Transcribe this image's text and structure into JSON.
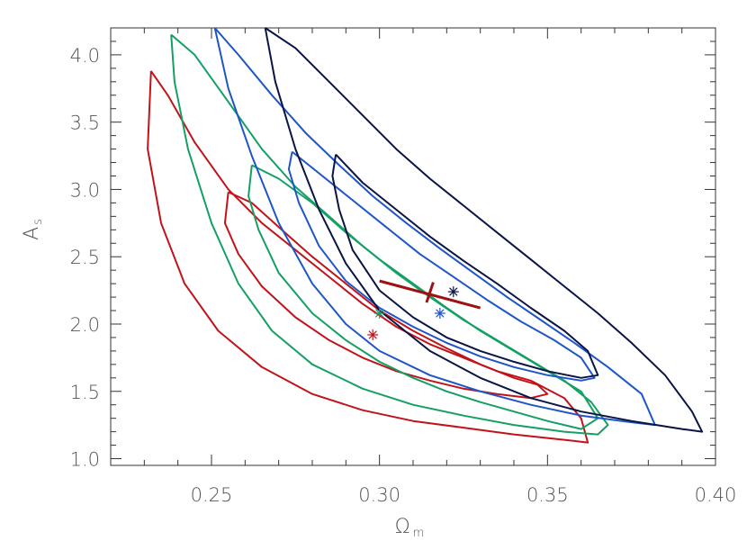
{
  "chart_data": {
    "type": "contour",
    "title": "",
    "xlabel": "Ω",
    "xlabel_sub": "m",
    "ylabel": "A",
    "ylabel_sub": "s",
    "xlim": [
      0.22,
      0.4
    ],
    "ylim": [
      0.95,
      4.2
    ],
    "xticks": [
      0.25,
      0.3,
      0.35,
      0.4
    ],
    "xtick_labels": [
      "0.25",
      "0.30",
      "0.35",
      "0.40"
    ],
    "xminor_step": 0.01,
    "yticks": [
      1.0,
      1.5,
      2.0,
      2.5,
      3.0,
      3.5,
      4.0
    ],
    "ytick_labels": [
      "1.0",
      "1.5",
      "2.0",
      "2.5",
      "3.0",
      "3.5",
      "4.0"
    ],
    "yminor_step": 0.1,
    "grid": false,
    "legend": "none",
    "series": [
      {
        "color": "#c0141a",
        "best_fit": [
          0.298,
          1.92
        ],
        "contours": [
          [
            [
              0.255,
              2.98
            ],
            [
              0.262,
              2.9
            ],
            [
              0.27,
              2.72
            ],
            [
              0.28,
              2.5
            ],
            [
              0.29,
              2.3
            ],
            [
              0.3,
              2.1
            ],
            [
              0.31,
              1.95
            ],
            [
              0.32,
              1.82
            ],
            [
              0.33,
              1.7
            ],
            [
              0.34,
              1.6
            ],
            [
              0.347,
              1.55
            ],
            [
              0.35,
              1.48
            ],
            [
              0.345,
              1.45
            ],
            [
              0.335,
              1.48
            ],
            [
              0.325,
              1.52
            ],
            [
              0.315,
              1.58
            ],
            [
              0.305,
              1.65
            ],
            [
              0.295,
              1.75
            ],
            [
              0.285,
              1.88
            ],
            [
              0.275,
              2.05
            ],
            [
              0.265,
              2.28
            ],
            [
              0.258,
              2.52
            ],
            [
              0.254,
              2.75
            ],
            [
              0.255,
              2.98
            ]
          ],
          [
            [
              0.232,
              3.88
            ],
            [
              0.237,
              3.7
            ],
            [
              0.245,
              3.35
            ],
            [
              0.255,
              3.0
            ],
            [
              0.265,
              2.75
            ],
            [
              0.275,
              2.55
            ],
            [
              0.285,
              2.35
            ],
            [
              0.295,
              2.15
            ],
            [
              0.305,
              1.98
            ],
            [
              0.315,
              1.85
            ],
            [
              0.325,
              1.75
            ],
            [
              0.335,
              1.65
            ],
            [
              0.345,
              1.58
            ],
            [
              0.355,
              1.45
            ],
            [
              0.36,
              1.3
            ],
            [
              0.362,
              1.12
            ],
            [
              0.355,
              1.14
            ],
            [
              0.34,
              1.18
            ],
            [
              0.325,
              1.23
            ],
            [
              0.31,
              1.28
            ],
            [
              0.295,
              1.36
            ],
            [
              0.28,
              1.48
            ],
            [
              0.265,
              1.68
            ],
            [
              0.252,
              1.95
            ],
            [
              0.242,
              2.3
            ],
            [
              0.235,
              2.75
            ],
            [
              0.231,
              3.3
            ],
            [
              0.232,
              3.88
            ]
          ]
        ]
      },
      {
        "color": "#14a064",
        "best_fit": [
          0.3,
          2.08
        ],
        "contours": [
          [
            [
              0.262,
              3.18
            ],
            [
              0.27,
              3.08
            ],
            [
              0.28,
              2.9
            ],
            [
              0.29,
              2.68
            ],
            [
              0.3,
              2.48
            ],
            [
              0.31,
              2.3
            ],
            [
              0.32,
              2.12
            ],
            [
              0.33,
              1.95
            ],
            [
              0.34,
              1.8
            ],
            [
              0.35,
              1.65
            ],
            [
              0.36,
              1.5
            ],
            [
              0.365,
              1.3
            ],
            [
              0.36,
              1.22
            ],
            [
              0.35,
              1.28
            ],
            [
              0.34,
              1.35
            ],
            [
              0.33,
              1.42
            ],
            [
              0.32,
              1.5
            ],
            [
              0.31,
              1.6
            ],
            [
              0.3,
              1.72
            ],
            [
              0.29,
              1.88
            ],
            [
              0.28,
              2.08
            ],
            [
              0.27,
              2.38
            ],
            [
              0.264,
              2.7
            ],
            [
              0.261,
              2.95
            ],
            [
              0.262,
              3.18
            ]
          ],
          [
            [
              0.238,
              4.15
            ],
            [
              0.245,
              4.0
            ],
            [
              0.255,
              3.65
            ],
            [
              0.265,
              3.3
            ],
            [
              0.275,
              3.02
            ],
            [
              0.285,
              2.8
            ],
            [
              0.295,
              2.58
            ],
            [
              0.305,
              2.38
            ],
            [
              0.315,
              2.2
            ],
            [
              0.325,
              2.03
            ],
            [
              0.335,
              1.88
            ],
            [
              0.345,
              1.73
            ],
            [
              0.355,
              1.58
            ],
            [
              0.363,
              1.42
            ],
            [
              0.368,
              1.25
            ],
            [
              0.365,
              1.18
            ],
            [
              0.355,
              1.2
            ],
            [
              0.34,
              1.25
            ],
            [
              0.325,
              1.32
            ],
            [
              0.31,
              1.4
            ],
            [
              0.295,
              1.52
            ],
            [
              0.28,
              1.7
            ],
            [
              0.268,
              1.95
            ],
            [
              0.258,
              2.3
            ],
            [
              0.25,
              2.75
            ],
            [
              0.243,
              3.3
            ],
            [
              0.239,
              3.8
            ],
            [
              0.238,
              4.15
            ]
          ]
        ]
      },
      {
        "color": "#1e55c8",
        "best_fit": [
          0.318,
          2.08
        ],
        "contours": [
          [
            [
              0.274,
              3.28
            ],
            [
              0.282,
              3.12
            ],
            [
              0.292,
              2.92
            ],
            [
              0.302,
              2.72
            ],
            [
              0.312,
              2.52
            ],
            [
              0.322,
              2.35
            ],
            [
              0.332,
              2.18
            ],
            [
              0.342,
              2.02
            ],
            [
              0.352,
              1.88
            ],
            [
              0.36,
              1.75
            ],
            [
              0.364,
              1.6
            ],
            [
              0.36,
              1.58
            ],
            [
              0.35,
              1.62
            ],
            [
              0.34,
              1.68
            ],
            [
              0.33,
              1.76
            ],
            [
              0.32,
              1.86
            ],
            [
              0.31,
              1.98
            ],
            [
              0.3,
              2.12
            ],
            [
              0.29,
              2.32
            ],
            [
              0.282,
              2.58
            ],
            [
              0.276,
              2.9
            ],
            [
              0.273,
              3.15
            ],
            [
              0.274,
              3.28
            ]
          ],
          [
            [
              0.251,
              4.2
            ],
            [
              0.258,
              4.0
            ],
            [
              0.268,
              3.7
            ],
            [
              0.278,
              3.42
            ],
            [
              0.288,
              3.18
            ],
            [
              0.298,
              2.95
            ],
            [
              0.308,
              2.75
            ],
            [
              0.318,
              2.56
            ],
            [
              0.328,
              2.38
            ],
            [
              0.338,
              2.2
            ],
            [
              0.348,
              2.03
            ],
            [
              0.358,
              1.86
            ],
            [
              0.368,
              1.68
            ],
            [
              0.378,
              1.48
            ],
            [
              0.382,
              1.25
            ],
            [
              0.375,
              1.27
            ],
            [
              0.36,
              1.32
            ],
            [
              0.345,
              1.4
            ],
            [
              0.33,
              1.5
            ],
            [
              0.315,
              1.62
            ],
            [
              0.3,
              1.8
            ],
            [
              0.29,
              2.0
            ],
            [
              0.28,
              2.3
            ],
            [
              0.27,
              2.75
            ],
            [
              0.262,
              3.25
            ],
            [
              0.255,
              3.75
            ],
            [
              0.251,
              4.2
            ]
          ]
        ]
      },
      {
        "color": "#0a1446",
        "best_fit": [
          0.322,
          2.24
        ],
        "contours": [
          [
            [
              0.287,
              3.26
            ],
            [
              0.295,
              3.05
            ],
            [
              0.305,
              2.85
            ],
            [
              0.315,
              2.65
            ],
            [
              0.325,
              2.47
            ],
            [
              0.335,
              2.3
            ],
            [
              0.345,
              2.12
            ],
            [
              0.355,
              1.95
            ],
            [
              0.362,
              1.8
            ],
            [
              0.365,
              1.62
            ],
            [
              0.36,
              1.6
            ],
            [
              0.35,
              1.65
            ],
            [
              0.34,
              1.72
            ],
            [
              0.33,
              1.8
            ],
            [
              0.32,
              1.9
            ],
            [
              0.31,
              2.05
            ],
            [
              0.3,
              2.25
            ],
            [
              0.292,
              2.55
            ],
            [
              0.288,
              2.85
            ],
            [
              0.286,
              3.1
            ],
            [
              0.287,
              3.26
            ]
          ],
          [
            [
              0.266,
              4.2
            ],
            [
              0.275,
              4.05
            ],
            [
              0.285,
              3.8
            ],
            [
              0.295,
              3.55
            ],
            [
              0.305,
              3.3
            ],
            [
              0.315,
              3.08
            ],
            [
              0.325,
              2.88
            ],
            [
              0.335,
              2.68
            ],
            [
              0.345,
              2.48
            ],
            [
              0.355,
              2.28
            ],
            [
              0.365,
              2.08
            ],
            [
              0.375,
              1.86
            ],
            [
              0.385,
              1.62
            ],
            [
              0.393,
              1.35
            ],
            [
              0.396,
              1.2
            ],
            [
              0.39,
              1.22
            ],
            [
              0.375,
              1.28
            ],
            [
              0.36,
              1.35
            ],
            [
              0.345,
              1.45
            ],
            [
              0.33,
              1.6
            ],
            [
              0.315,
              1.8
            ],
            [
              0.3,
              2.1
            ],
            [
              0.29,
              2.45
            ],
            [
              0.282,
              2.85
            ],
            [
              0.275,
              3.3
            ],
            [
              0.269,
              3.8
            ],
            [
              0.266,
              4.2
            ]
          ]
        ]
      }
    ],
    "marker_cross": {
      "color": "#a01010",
      "center": [
        0.315,
        2.23
      ],
      "segment_1": [
        [
          0.3,
          2.32
        ],
        [
          0.33,
          2.12
        ]
      ],
      "segment_2": [
        [
          0.314,
          2.16
        ],
        [
          0.316,
          2.31
        ]
      ]
    }
  }
}
